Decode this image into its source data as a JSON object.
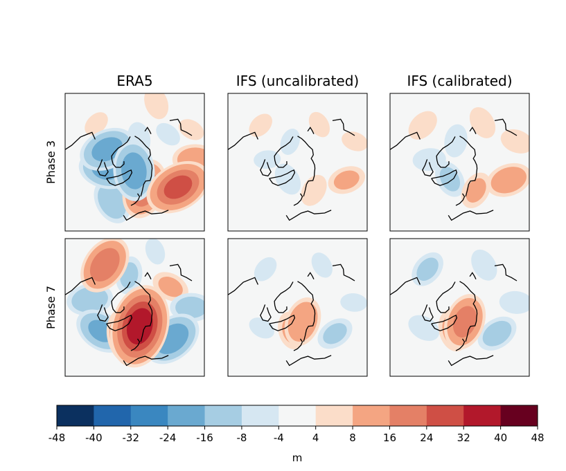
{
  "chart_data": {
    "type": "heatmap",
    "columns": [
      "ERA5",
      "IFS (uncalibrated)",
      "IFS (calibrated)"
    ],
    "rows": [
      "Phase 3",
      "Phase 7"
    ],
    "colorbar": {
      "label": "m",
      "boundaries": [
        -48,
        -40,
        -32,
        -24,
        -16,
        -8,
        -4,
        4,
        8,
        16,
        24,
        32,
        40,
        48
      ],
      "tick_labels": [
        "-48",
        "-40",
        "-32",
        "-24",
        "-16",
        "-8",
        "-4",
        "4",
        "8",
        "16",
        "24",
        "32",
        "40",
        "48"
      ],
      "colors": [
        "#0b305f",
        "#2166ac",
        "#3a87c0",
        "#6aa9d0",
        "#a6cde3",
        "#d6e7f2",
        "#f5f6f6",
        "#fbddc9",
        "#f4a582",
        "#e48066",
        "#cf4f45",
        "#b2182b",
        "#67001f"
      ]
    },
    "background_color": "#f5f6f6",
    "coastline_color": "#000000",
    "panels": [
      {
        "row": "Phase 3",
        "column": "ERA5",
        "anomalies": [
          {
            "lon": 225,
            "lat": 40,
            "value": 6
          },
          {
            "lon": 245,
            "lat": 62,
            "value": -20
          },
          {
            "lon": 285,
            "lat": 62,
            "value": -18
          },
          {
            "lon": 330,
            "lat": 48,
            "value": -14
          },
          {
            "lon": 20,
            "lat": 64,
            "value": 22
          },
          {
            "lon": 60,
            "lat": 44,
            "value": 26
          },
          {
            "lon": 92,
            "lat": 34,
            "value": 14
          },
          {
            "lon": 355,
            "lat": 82,
            "value": -22
          },
          {
            "lon": 170,
            "lat": 68,
            "value": -8
          },
          {
            "lon": 130,
            "lat": 50,
            "value": -6
          },
          {
            "lon": 160,
            "lat": 32,
            "value": 8
          },
          {
            "lon": 120,
            "lat": 30,
            "value": 6
          }
        ]
      },
      {
        "row": "Phase 3",
        "column": "IFS (uncalibrated)",
        "anomalies": [
          {
            "lon": 225,
            "lat": 42,
            "value": 6
          },
          {
            "lon": 265,
            "lat": 62,
            "value": -6
          },
          {
            "lon": 330,
            "lat": 72,
            "value": -8
          },
          {
            "lon": 30,
            "lat": 60,
            "value": 8
          },
          {
            "lon": 70,
            "lat": 42,
            "value": 10
          },
          {
            "lon": 110,
            "lat": 34,
            "value": 6
          },
          {
            "lon": 150,
            "lat": 50,
            "value": 6
          },
          {
            "lon": 200,
            "lat": 70,
            "value": -6
          }
        ]
      },
      {
        "row": "Phase 3",
        "column": "IFS (calibrated)",
        "anomalies": [
          {
            "lon": 225,
            "lat": 42,
            "value": 8
          },
          {
            "lon": 265,
            "lat": 62,
            "value": -8
          },
          {
            "lon": 330,
            "lat": 72,
            "value": -10
          },
          {
            "lon": 30,
            "lat": 60,
            "value": 10
          },
          {
            "lon": 70,
            "lat": 42,
            "value": 14
          },
          {
            "lon": 110,
            "lat": 34,
            "value": 8
          },
          {
            "lon": 150,
            "lat": 48,
            "value": 8
          },
          {
            "lon": 190,
            "lat": 70,
            "value": -8
          }
        ]
      },
      {
        "row": "Phase 7",
        "column": "ERA5",
        "anomalies": [
          {
            "lon": 215,
            "lat": 42,
            "value": 22
          },
          {
            "lon": 260,
            "lat": 48,
            "value": -14
          },
          {
            "lon": 305,
            "lat": 52,
            "value": -18
          },
          {
            "lon": 345,
            "lat": 62,
            "value": 20
          },
          {
            "lon": 15,
            "lat": 72,
            "value": 36
          },
          {
            "lon": 50,
            "lat": 45,
            "value": -22
          },
          {
            "lon": 90,
            "lat": 38,
            "value": -12
          },
          {
            "lon": 120,
            "lat": 52,
            "value": 10
          },
          {
            "lon": 160,
            "lat": 35,
            "value": -6
          },
          {
            "lon": 190,
            "lat": 60,
            "value": -10
          },
          {
            "lon": 120,
            "lat": 80,
            "value": -8
          }
        ]
      },
      {
        "row": "Phase 7",
        "column": "IFS (uncalibrated)",
        "anomalies": [
          {
            "lon": 220,
            "lat": 44,
            "value": -6
          },
          {
            "lon": 300,
            "lat": 52,
            "value": -6
          },
          {
            "lon": 345,
            "lat": 68,
            "value": 10
          },
          {
            "lon": 20,
            "lat": 76,
            "value": 16
          },
          {
            "lon": 55,
            "lat": 48,
            "value": -10
          },
          {
            "lon": 95,
            "lat": 38,
            "value": -6
          },
          {
            "lon": 150,
            "lat": 45,
            "value": -6
          }
        ]
      },
      {
        "row": "Phase 7",
        "column": "IFS (calibrated)",
        "anomalies": [
          {
            "lon": 220,
            "lat": 44,
            "value": -10
          },
          {
            "lon": 300,
            "lat": 52,
            "value": -8
          },
          {
            "lon": 345,
            "lat": 68,
            "value": 12
          },
          {
            "lon": 20,
            "lat": 76,
            "value": 20
          },
          {
            "lon": 55,
            "lat": 48,
            "value": -12
          },
          {
            "lon": 95,
            "lat": 38,
            "value": -8
          },
          {
            "lon": 150,
            "lat": 45,
            "value": -8
          }
        ]
      }
    ]
  }
}
